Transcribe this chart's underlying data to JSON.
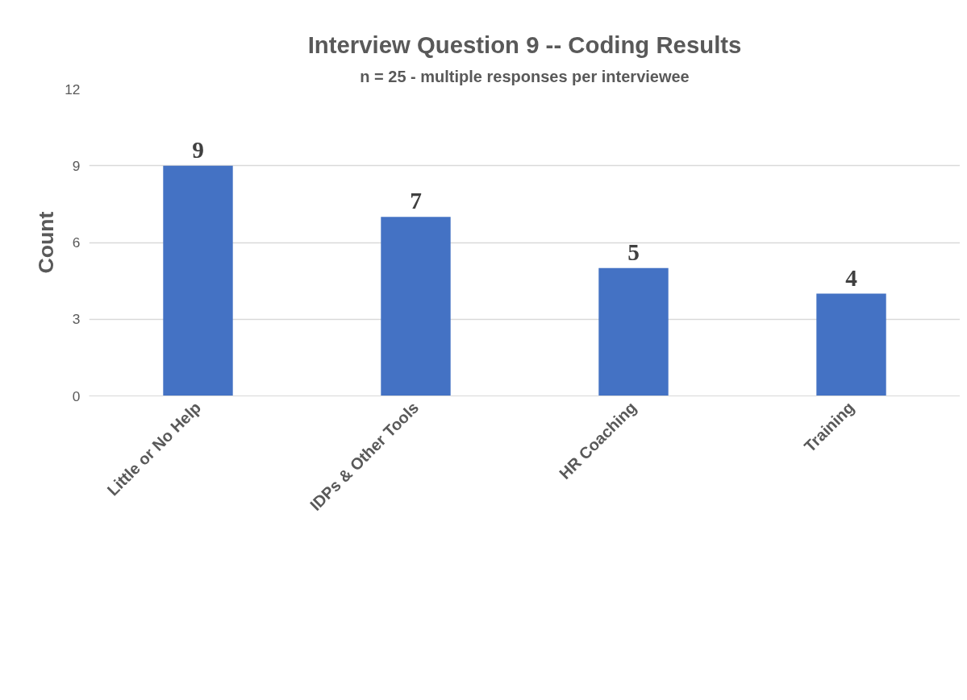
{
  "chart_data": {
    "type": "bar",
    "title": "Interview Question 9 -- Coding Results",
    "subtitle": "n = 25 - multiple responses per interviewee",
    "ylabel": "Count",
    "categories": [
      "Little or No Help",
      "IDPs & Other Tools",
      "HR Coaching",
      "Training"
    ],
    "values": [
      9,
      7,
      5,
      4
    ],
    "color": "#4472c4",
    "ylim": [
      0,
      12
    ],
    "yticks": [
      0,
      3,
      6,
      9,
      12
    ],
    "grid": "y",
    "data_labels": true
  }
}
